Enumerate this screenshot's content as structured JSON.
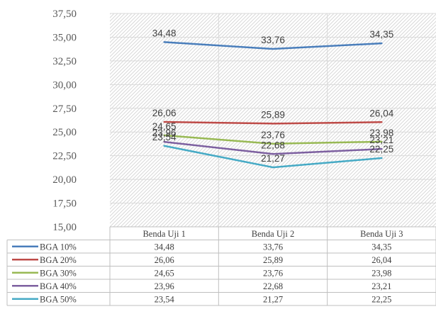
{
  "chart_data": {
    "type": "line",
    "title": "",
    "xlabel": "",
    "ylabel": "",
    "categories": [
      "Benda Uji 1",
      "Benda Uji 2",
      "Benda Uji 3"
    ],
    "ylim": [
      15,
      37.5
    ],
    "ytick_step": 2.5,
    "yticks": [
      "15,00",
      "17,50",
      "20,00",
      "22,50",
      "25,00",
      "27,50",
      "30,00",
      "32,50",
      "35,00",
      "37,50"
    ],
    "grid": true,
    "legend": "data-table-left",
    "series": [
      {
        "name": "BGA 10%",
        "color": "#4a7ebb",
        "values": [
          34.48,
          33.76,
          34.35
        ],
        "labels": [
          "34,48",
          "33,76",
          "34,35"
        ]
      },
      {
        "name": "BGA 20%",
        "color": "#be4b48",
        "values": [
          26.06,
          25.89,
          26.04
        ],
        "labels": [
          "26,06",
          "25,89",
          "26,04"
        ]
      },
      {
        "name": "BGA 30%",
        "color": "#98b954",
        "values": [
          24.65,
          23.76,
          23.98
        ],
        "labels": [
          "24,65",
          "23,76",
          "23,98"
        ]
      },
      {
        "name": "BGA 40%",
        "color": "#7d60a0",
        "values": [
          23.96,
          22.68,
          23.21
        ],
        "labels": [
          "23,96",
          "22,68",
          "23,21"
        ]
      },
      {
        "name": "BGA 50%",
        "color": "#46aac5",
        "values": [
          23.54,
          21.27,
          22.25
        ],
        "labels": [
          "23,54",
          "21,27",
          "22,25"
        ]
      }
    ]
  }
}
